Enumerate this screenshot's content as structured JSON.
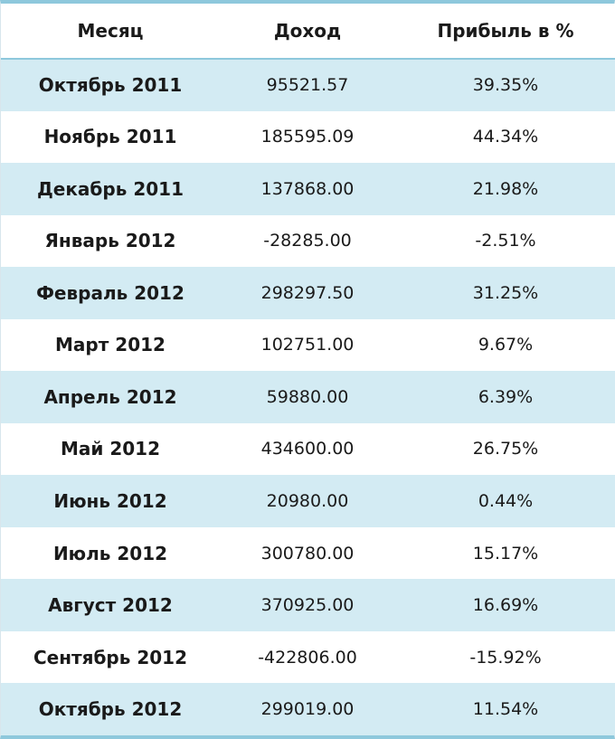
{
  "headers": {
    "month": "Месяц",
    "income": "Доход",
    "profit": "Прибыль в %"
  },
  "rows": [
    {
      "month": "Октябрь 2011",
      "income": "95521.57",
      "profit": "39.35%"
    },
    {
      "month": "Ноябрь 2011",
      "income": "185595.09",
      "profit": "44.34%"
    },
    {
      "month": "Декабрь 2011",
      "income": "137868.00",
      "profit": "21.98%"
    },
    {
      "month": "Январь 2012",
      "income": "-28285.00",
      "profit": "-2.51%"
    },
    {
      "month": "Февраль 2012",
      "income": "298297.50",
      "profit": "31.25%"
    },
    {
      "month": "Март 2012",
      "income": "102751.00",
      "profit": "9.67%"
    },
    {
      "month": "Апрель 2012",
      "income": "59880.00",
      "profit": "6.39%"
    },
    {
      "month": "Май 2012",
      "income": "434600.00",
      "profit": "26.75%"
    },
    {
      "month": "Июнь 2012",
      "income": "20980.00",
      "profit": "0.44%"
    },
    {
      "month": "Июль 2012",
      "income": "300780.00",
      "profit": "15.17%"
    },
    {
      "month": "Август 2012",
      "income": "370925.00",
      "profit": "16.69%"
    },
    {
      "month": "Сентябрь 2012",
      "income": "-422806.00",
      "profit": "-15.92%"
    },
    {
      "month": "Октябрь 2012",
      "income": "299019.00",
      "profit": "11.54%"
    }
  ],
  "colors": {
    "stripe": "#d3ebf3",
    "border": "#8ec8dc",
    "text": "#1a1a1a"
  }
}
